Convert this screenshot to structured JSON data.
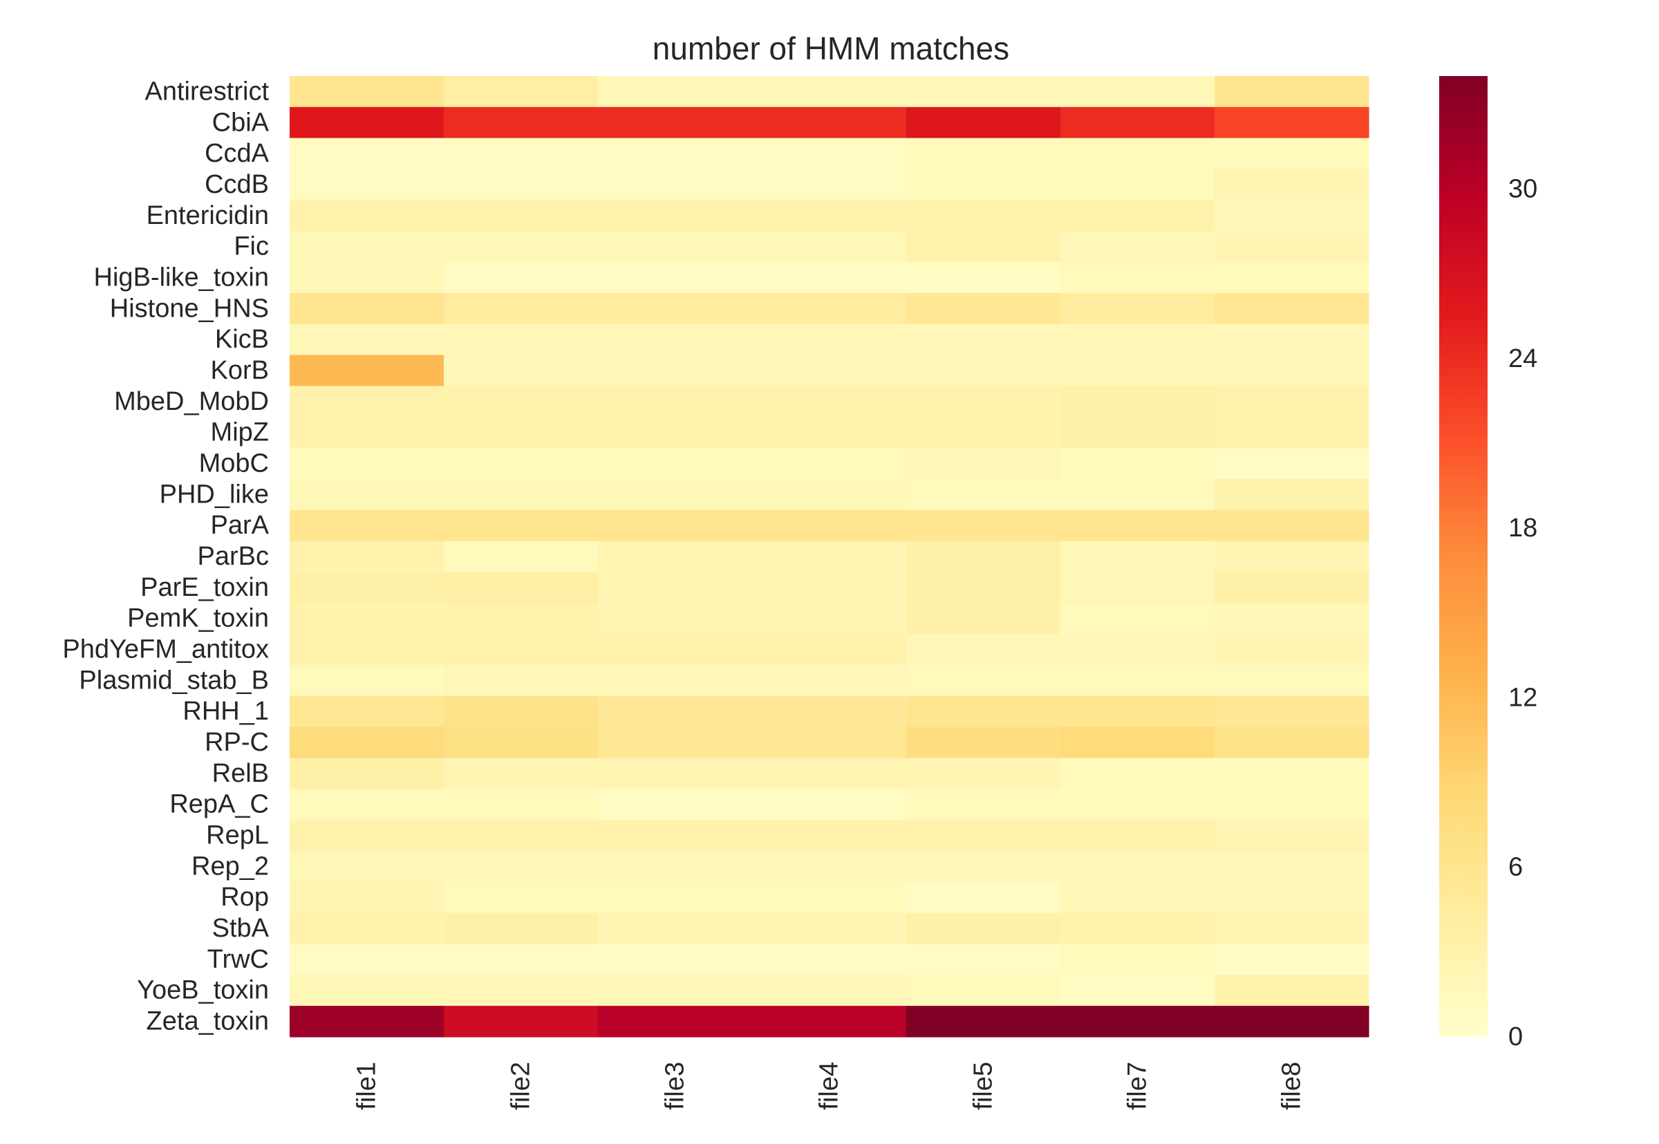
{
  "chart_data": {
    "type": "heatmap",
    "title": "number of HMM matches",
    "xlabel": "",
    "ylabel": "",
    "columns": [
      "file1",
      "file2",
      "file3",
      "file4",
      "file5",
      "file7",
      "file8"
    ],
    "rows": [
      "Antirestrict",
      "CbiA",
      "CcdA",
      "CcdB",
      "Entericidin",
      "Fic",
      "HigB-like_toxin",
      "Histone_HNS",
      "KicB",
      "KorB",
      "MbeD_MobD",
      "MipZ",
      "MobC",
      "PHD_like",
      "ParA",
      "ParBc",
      "ParE_toxin",
      "PemK_toxin",
      "PhdYeFM_antitox",
      "Plasmid_stab_B",
      "RHH_1",
      "RP-C",
      "RelB",
      "RepA_C",
      "RepL",
      "Rep_2",
      "Rop",
      "StbA",
      "TrwC",
      "YoeB_toxin",
      "Zeta_toxin"
    ],
    "values": [
      [
        6,
        4,
        2,
        2,
        2,
        2,
        6
      ],
      [
        26,
        24,
        24,
        24,
        26,
        24,
        22
      ],
      [
        1,
        1,
        1,
        1,
        1.5,
        1.5,
        1.5
      ],
      [
        1,
        1,
        1,
        1,
        1.5,
        1.5,
        2.5
      ],
      [
        3,
        3,
        3,
        3,
        3,
        3,
        2
      ],
      [
        2,
        2,
        2,
        2,
        3,
        2,
        2.5
      ],
      [
        2,
        1,
        1,
        1,
        1,
        1.5,
        1.5
      ],
      [
        6,
        4.5,
        4.5,
        4.5,
        5.5,
        4.5,
        5.5
      ],
      [
        2,
        2,
        2,
        2,
        2,
        2,
        2
      ],
      [
        12,
        2,
        2,
        2,
        2,
        2,
        2
      ],
      [
        3,
        3,
        3,
        3,
        3,
        3.5,
        3
      ],
      [
        3,
        3,
        3,
        3,
        3,
        3.5,
        3
      ],
      [
        1.5,
        1.5,
        1.5,
        1.5,
        2,
        1.5,
        1
      ],
      [
        2,
        2,
        2,
        2,
        1.5,
        1.5,
        3
      ],
      [
        6,
        6,
        6,
        6,
        6,
        6,
        6
      ],
      [
        3,
        1.5,
        2.5,
        2.5,
        3.5,
        2,
        2.5
      ],
      [
        3.5,
        4,
        2.5,
        2.5,
        3.5,
        2,
        3.5
      ],
      [
        3,
        3,
        2.5,
        2.5,
        3.5,
        1.5,
        2
      ],
      [
        3,
        3,
        3,
        3,
        2,
        2,
        2.5
      ],
      [
        1.5,
        2,
        2,
        2,
        1.5,
        1.5,
        1.5
      ],
      [
        5.5,
        6.5,
        5,
        5,
        6,
        6,
        5.5
      ],
      [
        8,
        7,
        5.5,
        5.5,
        7.5,
        8,
        6.5
      ],
      [
        3.5,
        2.5,
        2.5,
        2.5,
        2.5,
        1.5,
        1.5
      ],
      [
        1.5,
        1.5,
        1,
        1,
        1.5,
        1.5,
        1.5
      ],
      [
        3,
        3,
        3,
        3,
        3,
        3,
        2.5
      ],
      [
        2,
        2,
        2,
        2,
        2,
        2,
        2
      ],
      [
        2.5,
        1.5,
        1.5,
        1.5,
        1,
        2,
        2
      ],
      [
        3,
        3.5,
        2.5,
        2.5,
        3.5,
        3,
        2.5
      ],
      [
        1,
        1,
        1,
        1,
        1,
        1.5,
        1
      ],
      [
        2,
        2,
        2,
        2,
        1.5,
        1,
        3
      ],
      [
        32,
        28,
        30,
        30,
        34,
        34,
        34
      ]
    ],
    "colorbar": {
      "min": 0,
      "max": 34,
      "ticks": [
        0,
        6,
        12,
        18,
        24,
        30
      ],
      "colormap": "YlOrRd"
    },
    "grid": false,
    "legend": "colorbar-right"
  }
}
